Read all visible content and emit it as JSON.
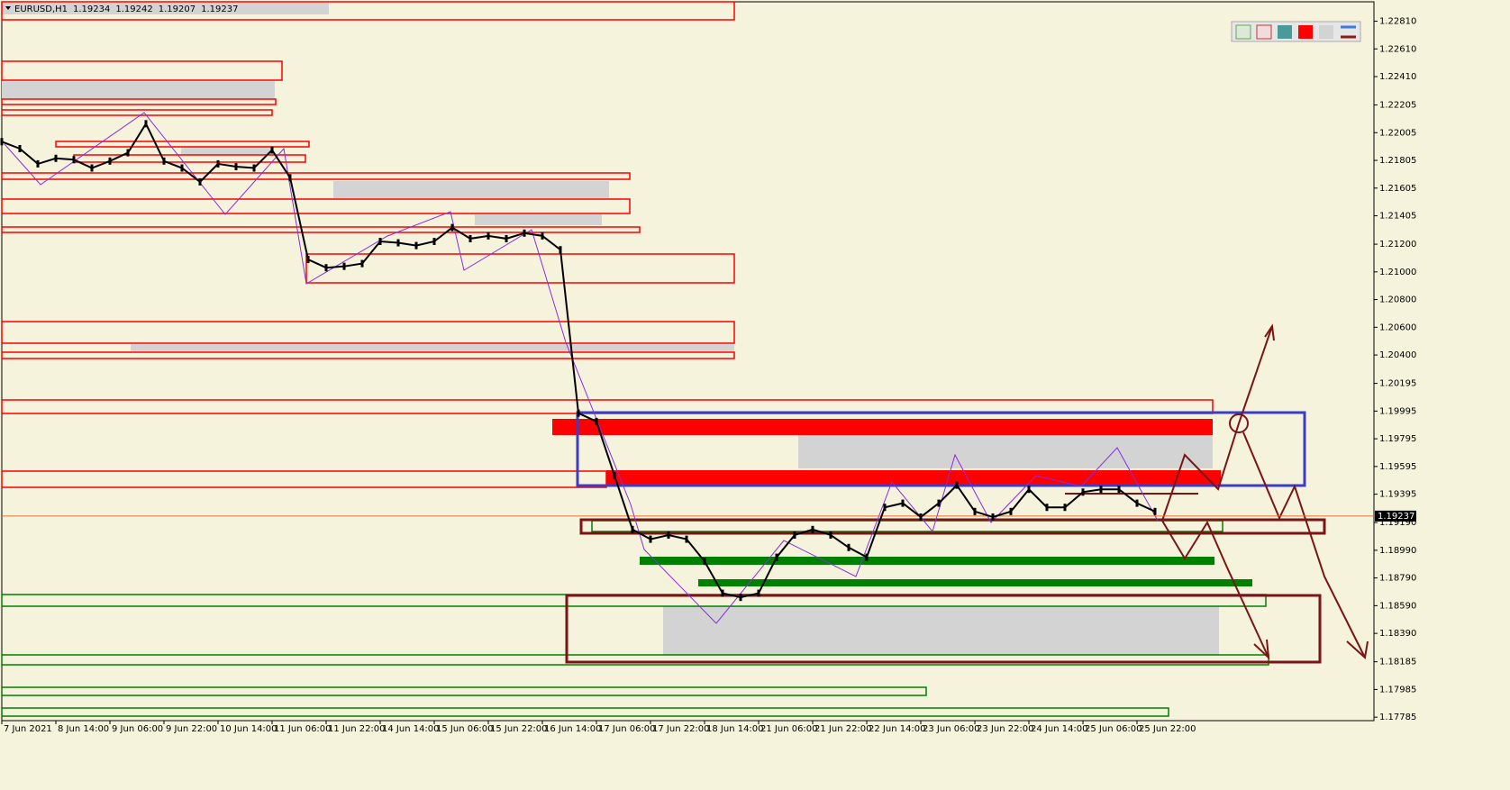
{
  "chart_data": {
    "type": "line",
    "title": "EURUSD,H1",
    "ohlc": [
      1.19234,
      1.19242,
      1.19207,
      1.19237
    ],
    "categories": [
      "7 Jun 2021",
      null,
      null,
      "8 Jun 14:00",
      null,
      null,
      "9 Jun 06:00",
      null,
      null,
      "9 Jun 22:00",
      null,
      null,
      "10 Jun 14:00",
      null,
      null,
      "11 Jun 06:00",
      null,
      null,
      "11 Jun 22:00",
      null,
      null,
      "14 Jun 14:00",
      null,
      null,
      "15 Jun 06:00",
      null,
      null,
      "15 Jun 22:00",
      null,
      null,
      "16 Jun 14:00",
      null,
      null,
      "17 Jun 06:00",
      null,
      null,
      "17 Jun 22:00",
      null,
      null,
      "18 Jun 14:00",
      null,
      null,
      "21 Jun 06:00",
      null,
      null,
      "21 Jun 22:00",
      null,
      null,
      "22 Jun 14:00",
      null,
      null,
      "23 Jun 06:00",
      null,
      null,
      "23 Jun 22:00",
      null,
      null,
      "24 Jun 14:00",
      null,
      null,
      "25 Jun 06:00",
      null,
      null,
      "25 Jun 22:00",
      null
    ],
    "series": [
      {
        "name": "EURUSD,H1",
        "color": "#000000",
        "values": [
          1.2194,
          1.2189,
          1.2178,
          1.2182,
          1.2181,
          1.2175,
          1.218,
          1.2186,
          1.2207,
          1.218,
          1.2175,
          1.2165,
          1.2178,
          1.2176,
          1.2175,
          1.2188,
          1.2168,
          1.2109,
          1.2103,
          1.2104,
          1.2106,
          1.2122,
          1.2121,
          1.2119,
          1.2122,
          1.2132,
          1.2124,
          1.2126,
          1.2124,
          1.2128,
          1.2126,
          1.2116,
          1.1998,
          1.1992,
          1.1953,
          1.1914,
          1.1907,
          1.191,
          1.1907,
          1.1891,
          1.1868,
          1.1865,
          1.1868,
          1.1894,
          1.191,
          1.1914,
          1.191,
          1.1901,
          1.1894,
          1.193,
          1.1933,
          1.1923,
          1.1933,
          1.1946,
          1.1927,
          1.1923,
          1.1927,
          1.1943,
          1.193,
          1.193,
          1.1941,
          1.1943,
          1.1943,
          1.1933,
          1.1927
        ]
      }
    ],
    "ylim": [
      1.1776,
      1.2295
    ],
    "yticks": [
      {
        "value": 1.2281,
        "label": "1.22810"
      },
      {
        "value": 1.2261,
        "label": "1.22610"
      },
      {
        "value": 1.2241,
        "label": "1.22410"
      },
      {
        "value": 1.22205,
        "label": "1.22205"
      },
      {
        "value": 1.22005,
        "label": "1.22005"
      },
      {
        "value": 1.21805,
        "label": "1.21805"
      },
      {
        "value": 1.21605,
        "label": "1.21605"
      },
      {
        "value": 1.21405,
        "label": "1.21405"
      },
      {
        "value": 1.212,
        "label": "1.21200"
      },
      {
        "value": 1.21,
        "label": "1.21000"
      },
      {
        "value": 1.208,
        "label": "1.20800"
      },
      {
        "value": 1.206,
        "label": "1.20600"
      },
      {
        "value": 1.204,
        "label": "1.20400"
      },
      {
        "value": 1.20195,
        "label": "1.20195"
      },
      {
        "value": 1.19995,
        "label": "1.19995"
      },
      {
        "value": 1.19795,
        "label": "1.19795"
      },
      {
        "value": 1.19595,
        "label": "1.19595"
      },
      {
        "value": 1.19395,
        "label": "1.19395"
      },
      {
        "value": 1.1919,
        "label": "1.19190"
      },
      {
        "value": 1.1899,
        "label": "1.18990"
      },
      {
        "value": 1.1879,
        "label": "1.18790"
      },
      {
        "value": 1.1859,
        "label": "1.18590"
      },
      {
        "value": 1.1839,
        "label": "1.18390"
      },
      {
        "value": 1.18185,
        "label": "1.18185"
      },
      {
        "value": 1.17985,
        "label": "1.17985"
      },
      {
        "value": 1.17785,
        "label": "1.17785"
      }
    ],
    "price_marker": {
      "value": 1.19237,
      "label": "1.19237"
    }
  }
}
